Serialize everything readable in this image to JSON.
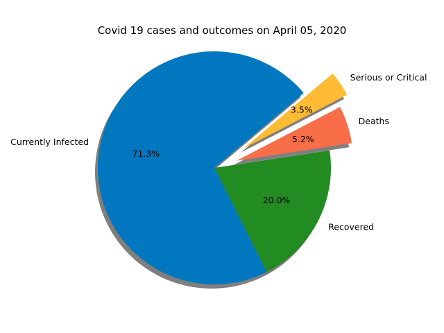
{
  "chart_data": {
    "type": "pie",
    "title": "Covid 19 cases and outcomes on April 05, 2020",
    "labels": [
      "Currently Infected",
      "Recovered",
      "Deaths",
      "Serious or Critical"
    ],
    "values": [
      71.3,
      20.0,
      5.2,
      3.5
    ],
    "percent_labels": [
      "71.3%",
      "20.0%",
      "5.2%",
      "3.5%"
    ],
    "colors": [
      "#0077be",
      "#228b22",
      "#f86e48",
      "#ffbb33"
    ],
    "explode": [
      0,
      0,
      0.2,
      0.3
    ],
    "start_angle_degrees": 40,
    "shadow": true
  }
}
